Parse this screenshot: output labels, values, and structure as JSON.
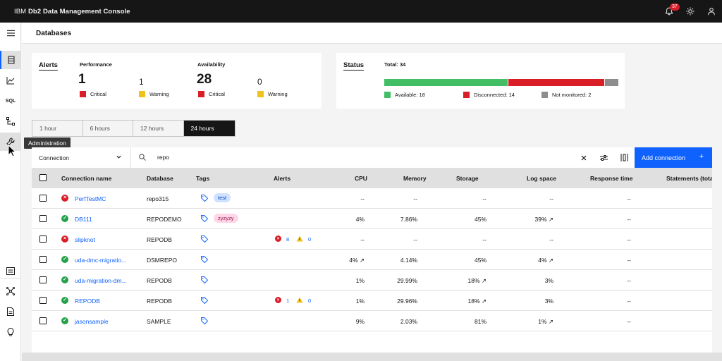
{
  "header": {
    "brand_prefix": "IBM",
    "brand_name": "Db2 Data Management Console",
    "notification_count": "37"
  },
  "page": {
    "title": "Databases"
  },
  "nav": {
    "sql_label": "SQL",
    "tooltip": "Administration"
  },
  "alerts": {
    "title": "Alerts",
    "performance_label": "Performance",
    "availability_label": "Availability",
    "perf_critical": "1",
    "perf_warning": "1",
    "avail_critical": "28",
    "avail_warning": "0",
    "critical_label": "Critical",
    "warning_label": "Warning",
    "critical_color": "#da1e28",
    "warning_color": "#f1c21b"
  },
  "status": {
    "title": "Status",
    "total": "Total: 34",
    "available": "Available: 18",
    "disconnected": "Disconnected: 14",
    "not_monitored": "Not monitored: 2",
    "available_value": 18,
    "disconnected_value": 14,
    "not_monitored_value": 2,
    "available_color": "#42be65",
    "disconnected_color": "#da1e28",
    "not_monitored_color": "#8d8d8d"
  },
  "timerange": {
    "options": [
      "1 hour",
      "6 hours",
      "12 hours",
      "24 hours"
    ],
    "selected": "24 hours"
  },
  "toolbar": {
    "filter_selected": "Connection",
    "search_value": "repo",
    "add_label": "Add connection",
    "add_plus": "+"
  },
  "table": {
    "columns": [
      "Connection name",
      "Database",
      "Tags",
      "Alerts",
      "CPU",
      "Memory",
      "Storage",
      "Log space",
      "Response time",
      "Statements (tota"
    ],
    "rows": [
      {
        "status": "error",
        "name": "PerfTestMC",
        "database": "repo315",
        "tag": "test",
        "tag_style": "blue",
        "alert_crit": "",
        "alert_warn": "",
        "cpu": "--",
        "memory": "--",
        "storage": "--",
        "log": "--",
        "response": "--"
      },
      {
        "status": "ok",
        "name": "DB111",
        "database": "REPODEMO",
        "tag": "zyzyzy",
        "tag_style": "pink",
        "alert_crit": "",
        "alert_warn": "",
        "cpu": "4%",
        "memory": "7.86%",
        "storage": "45%",
        "log": "39% ↗",
        "response": "--"
      },
      {
        "status": "error",
        "name": "slipknot",
        "database": "REPODB",
        "tag": "",
        "tag_style": "",
        "alert_crit": "8",
        "alert_warn": "0",
        "cpu": "--",
        "memory": "--",
        "storage": "--",
        "log": "--",
        "response": "--"
      },
      {
        "status": "ok",
        "name": "uda-dmc-migratio...",
        "database": "DSMREPO",
        "tag": "",
        "tag_style": "",
        "alert_crit": "",
        "alert_warn": "",
        "cpu": "4% ↗",
        "memory": "4.14%",
        "storage": "45%",
        "log": "4% ↗",
        "response": "--"
      },
      {
        "status": "ok",
        "name": "uda-migration-dm...",
        "database": "REPODB",
        "tag": "",
        "tag_style": "",
        "alert_crit": "",
        "alert_warn": "",
        "cpu": "1%",
        "memory": "29.99%",
        "storage": "18% ↗",
        "log": "3%",
        "response": "--"
      },
      {
        "status": "ok",
        "name": "REPODB",
        "database": "REPODB",
        "tag": "",
        "tag_style": "",
        "alert_crit": "1",
        "alert_warn": "0",
        "cpu": "1%",
        "memory": "29.96%",
        "storage": "18% ↗",
        "log": "3%",
        "response": "--"
      },
      {
        "status": "ok",
        "name": "jasonsample",
        "database": "SAMPLE",
        "tag": "",
        "tag_style": "",
        "alert_crit": "",
        "alert_warn": "",
        "cpu": "9%",
        "memory": "2.03%",
        "storage": "81%",
        "log": "1% ↗",
        "response": "--"
      }
    ]
  },
  "colors": {
    "accent": "#0f62fe",
    "ok": "#24a148",
    "error": "#da1e28"
  }
}
